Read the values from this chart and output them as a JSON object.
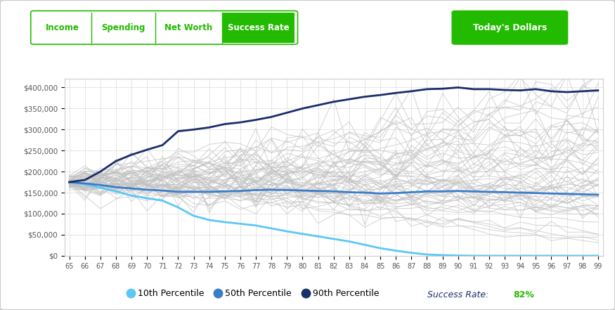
{
  "x_min": 65,
  "x_max": 99,
  "y_min": 0,
  "y_max": 420000,
  "y_ticks": [
    0,
    50000,
    100000,
    150000,
    200000,
    250000,
    300000,
    350000,
    400000
  ],
  "y_tick_labels": [
    "$0",
    "$50,000",
    "$100,000",
    "$150,000",
    "$200,000",
    "$250,000",
    "$300,000",
    "$350,000",
    "$400,000"
  ],
  "x_ticks": [
    65,
    66,
    67,
    68,
    69,
    70,
    71,
    72,
    73,
    74,
    75,
    76,
    77,
    78,
    79,
    80,
    81,
    82,
    83,
    84,
    85,
    86,
    87,
    88,
    89,
    90,
    91,
    92,
    93,
    94,
    95,
    96,
    97,
    98,
    99
  ],
  "color_10th": "#5bc8f5",
  "color_50th": "#3a7dc9",
  "color_90th": "#1a2d6b",
  "color_sim": "#c0c0c0",
  "background": "#ffffff",
  "grid_color": "#e0e0e0",
  "border_color": "#cccccc",
  "success_rate_label": "Success Rate: ",
  "success_rate_value": "82%",
  "tabs": [
    "Income",
    "Spending",
    "Net Worth",
    "Success Rate"
  ],
  "active_tab_index": 3,
  "button": "Today's Dollars",
  "tab_active_bg": "#22bb00",
  "tab_active_fg": "#ffffff",
  "tab_inactive_fg": "#22bb00",
  "tab_border": "#22bb00",
  "legend_entries": [
    "10th Percentile",
    "50th Percentile",
    "90th Percentile"
  ],
  "p10": [
    175000,
    170000,
    162000,
    153000,
    143000,
    137000,
    131000,
    115000,
    95000,
    85000,
    80000,
    76000,
    72000,
    65000,
    58000,
    52000,
    46000,
    40000,
    34000,
    26000,
    18000,
    12000,
    7000,
    3000,
    1500,
    500,
    0,
    0,
    0,
    0,
    0,
    0,
    0,
    0,
    0
  ],
  "p50": [
    175000,
    172000,
    168000,
    163000,
    160000,
    157000,
    155000,
    152000,
    152000,
    152000,
    153000,
    154000,
    156000,
    157000,
    156000,
    155000,
    154000,
    153000,
    151000,
    150000,
    148000,
    149000,
    151000,
    153000,
    153000,
    154000,
    153000,
    152000,
    151000,
    150000,
    149000,
    148000,
    147000,
    146000,
    145000
  ],
  "p90": [
    175000,
    180000,
    200000,
    225000,
    240000,
    252000,
    263000,
    296000,
    300000,
    305000,
    313000,
    317000,
    323000,
    330000,
    340000,
    350000,
    358000,
    366000,
    372000,
    378000,
    382000,
    387000,
    391000,
    396000,
    397000,
    400000,
    396000,
    396000,
    394000,
    393000,
    396000,
    391000,
    389000,
    391000,
    393000
  ]
}
